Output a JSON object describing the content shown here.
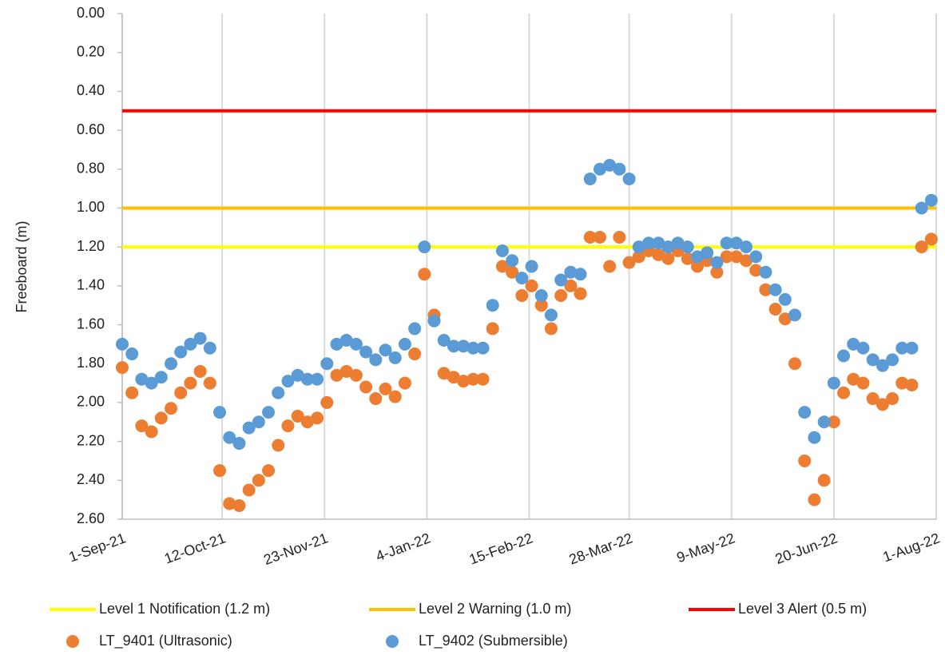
{
  "chart_data": {
    "type": "scatter",
    "y_label": "Freeboard (m)",
    "x": [
      "2021-09-01",
      "2021-09-05",
      "2021-09-09",
      "2021-09-13",
      "2021-09-17",
      "2021-09-21",
      "2021-09-25",
      "2021-09-29",
      "2021-10-03",
      "2021-10-07",
      "2021-10-11",
      "2021-10-15",
      "2021-10-19",
      "2021-10-23",
      "2021-10-27",
      "2021-10-31",
      "2021-11-04",
      "2021-11-08",
      "2021-11-12",
      "2021-11-16",
      "2021-11-20",
      "2021-11-24",
      "2021-11-28",
      "2021-12-02",
      "2021-12-06",
      "2021-12-10",
      "2021-12-14",
      "2021-12-18",
      "2021-12-22",
      "2021-12-26",
      "2021-12-30",
      "2022-01-03",
      "2022-01-07",
      "2022-01-11",
      "2022-01-15",
      "2022-01-19",
      "2022-01-23",
      "2022-01-27",
      "2022-01-31",
      "2022-02-04",
      "2022-02-08",
      "2022-02-12",
      "2022-02-16",
      "2022-02-20",
      "2022-02-24",
      "2022-02-28",
      "2022-03-04",
      "2022-03-08",
      "2022-03-12",
      "2022-03-16",
      "2022-03-20",
      "2022-03-24",
      "2022-03-28",
      "2022-04-01",
      "2022-04-05",
      "2022-04-09",
      "2022-04-13",
      "2022-04-17",
      "2022-04-21",
      "2022-04-25",
      "2022-04-29",
      "2022-05-03",
      "2022-05-07",
      "2022-05-11",
      "2022-05-15",
      "2022-05-19",
      "2022-05-23",
      "2022-05-27",
      "2022-05-31",
      "2022-06-04",
      "2022-06-08",
      "2022-06-12",
      "2022-06-16",
      "2022-06-20",
      "2022-06-24",
      "2022-06-28",
      "2022-07-02",
      "2022-07-06",
      "2022-07-10",
      "2022-07-14",
      "2022-07-18",
      "2022-07-22",
      "2022-07-26",
      "2022-07-30"
    ],
    "series": [
      {
        "name": "LT_9401 (Ultrasonic)",
        "color": "#ed7d31",
        "values": [
          1.82,
          1.95,
          2.12,
          2.15,
          2.08,
          2.03,
          1.95,
          1.9,
          1.84,
          1.9,
          2.35,
          2.52,
          2.53,
          2.45,
          2.4,
          2.35,
          2.22,
          2.12,
          2.07,
          2.1,
          2.08,
          2.0,
          1.86,
          1.84,
          1.86,
          1.92,
          1.98,
          1.93,
          1.97,
          1.9,
          1.75,
          1.34,
          1.55,
          1.85,
          1.87,
          1.89,
          1.88,
          1.88,
          1.62,
          1.3,
          1.33,
          1.45,
          1.4,
          1.5,
          1.62,
          1.45,
          1.4,
          1.44,
          1.15,
          1.15,
          1.3,
          1.15,
          1.28,
          1.25,
          1.22,
          1.24,
          1.26,
          1.22,
          1.26,
          1.3,
          1.27,
          1.33,
          1.25,
          1.25,
          1.27,
          1.32,
          1.42,
          1.52,
          1.57,
          1.8,
          2.3,
          2.5,
          2.4,
          2.1,
          1.95,
          1.88,
          1.9,
          1.98,
          2.01,
          1.98,
          1.9,
          1.91,
          1.2,
          1.16
        ]
      },
      {
        "name": "LT_9402 (Submersible)",
        "color": "#5b9bd5",
        "values": [
          1.7,
          1.75,
          1.88,
          1.9,
          1.87,
          1.8,
          1.74,
          1.7,
          1.67,
          1.72,
          2.05,
          2.18,
          2.21,
          2.13,
          2.1,
          2.05,
          1.95,
          1.89,
          1.86,
          1.88,
          1.88,
          1.8,
          1.7,
          1.68,
          1.7,
          1.74,
          1.78,
          1.73,
          1.77,
          1.7,
          1.62,
          1.2,
          1.58,
          1.68,
          1.71,
          1.71,
          1.72,
          1.72,
          1.5,
          1.22,
          1.27,
          1.36,
          1.3,
          1.45,
          1.55,
          1.37,
          1.33,
          1.34,
          0.85,
          0.8,
          0.78,
          0.8,
          0.85,
          1.2,
          1.18,
          1.18,
          1.2,
          1.18,
          1.2,
          1.25,
          1.23,
          1.28,
          1.18,
          1.18,
          1.2,
          1.25,
          1.33,
          1.42,
          1.47,
          1.55,
          2.05,
          2.18,
          2.1,
          1.9,
          1.76,
          1.7,
          1.72,
          1.78,
          1.81,
          1.78,
          1.72,
          1.72,
          1.0,
          0.96
        ]
      }
    ],
    "lines": [
      {
        "name": "Level 1 Notification (1.2 m)",
        "color": "#ffff00",
        "value": 1.2
      },
      {
        "name": "Level 2 Warning (1.0 m)",
        "color": "#ffc000",
        "value": 1.0
      },
      {
        "name": "Level 3 Alert (0.5 m)",
        "color": "#ff0000",
        "value": 0.5
      }
    ],
    "xlim": [
      "2021-09-01",
      "2022-08-01"
    ],
    "xticks": [
      {
        "value": "2021-09-01",
        "label": "1-Sep-21"
      },
      {
        "value": "2021-10-12",
        "label": "12-Oct-21"
      },
      {
        "value": "2021-11-23",
        "label": "23-Nov-21"
      },
      {
        "value": "2022-01-04",
        "label": "4-Jan-22"
      },
      {
        "value": "2022-02-15",
        "label": "15-Feb-22"
      },
      {
        "value": "2022-03-28",
        "label": "28-Mar-22"
      },
      {
        "value": "2022-05-09",
        "label": "9-May-22"
      },
      {
        "value": "2022-06-20",
        "label": "20-Jun-22"
      },
      {
        "value": "2022-08-01",
        "label": "1-Aug-22"
      }
    ],
    "ylim": [
      0,
      2.6
    ],
    "y_inverted": true,
    "yticks": [
      {
        "value": 0,
        "label": "0.00"
      },
      {
        "value": 0.2,
        "label": "0.20"
      },
      {
        "value": 0.4,
        "label": "0.40"
      },
      {
        "value": 0.6,
        "label": "0.60"
      },
      {
        "value": 0.8,
        "label": "0.80"
      },
      {
        "value": 1,
        "label": "1.00"
      },
      {
        "value": 1.2,
        "label": "1.20"
      },
      {
        "value": 1.4,
        "label": "1.40"
      },
      {
        "value": 1.6,
        "label": "1.60"
      },
      {
        "value": 1.8,
        "label": "1.80"
      },
      {
        "value": 2,
        "label": "2.00"
      },
      {
        "value": 2.2,
        "label": "2.20"
      },
      {
        "value": 2.4,
        "label": "2.40"
      },
      {
        "value": 2.6,
        "label": "2.60"
      }
    ],
    "grid": "x"
  }
}
